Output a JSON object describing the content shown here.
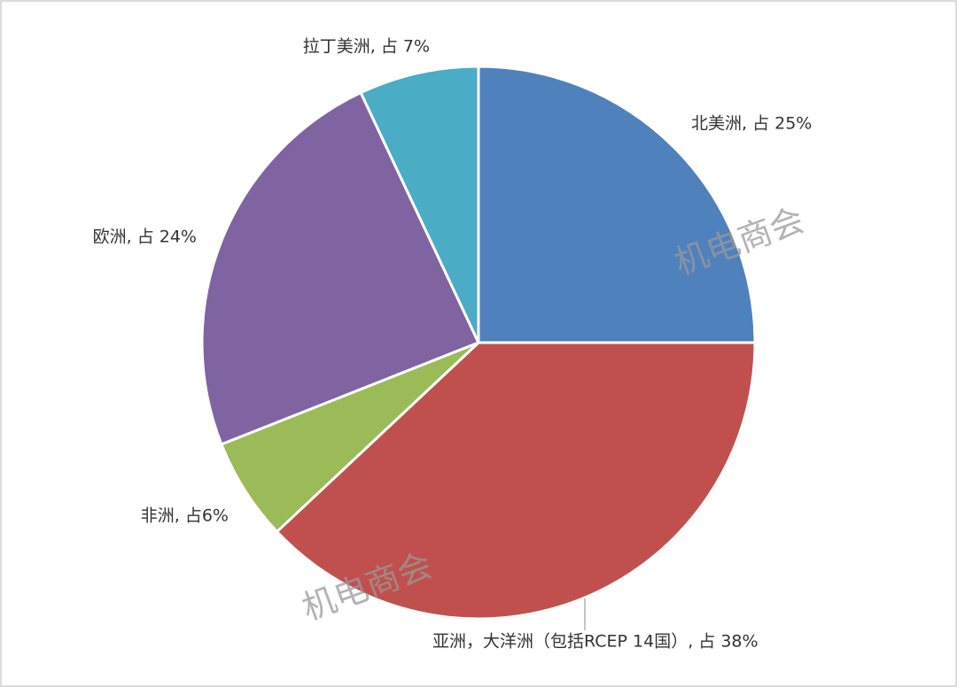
{
  "chart_data": {
    "type": "pie",
    "values": [
      25,
      38,
      6,
      24,
      7
    ],
    "value_labels": [
      "北美洲, 占 25%",
      "亚洲，大洋洲（包括RCEP 14国）, 占 38%",
      "非洲, 占6%",
      "欧洲, 占 24%",
      "拉丁美洲, 占 7%"
    ],
    "colors": [
      "#4f81bd",
      "#c0504d",
      "#9bbb59",
      "#8064a2",
      "#4bacc6"
    ],
    "watermark": "机电商会"
  }
}
